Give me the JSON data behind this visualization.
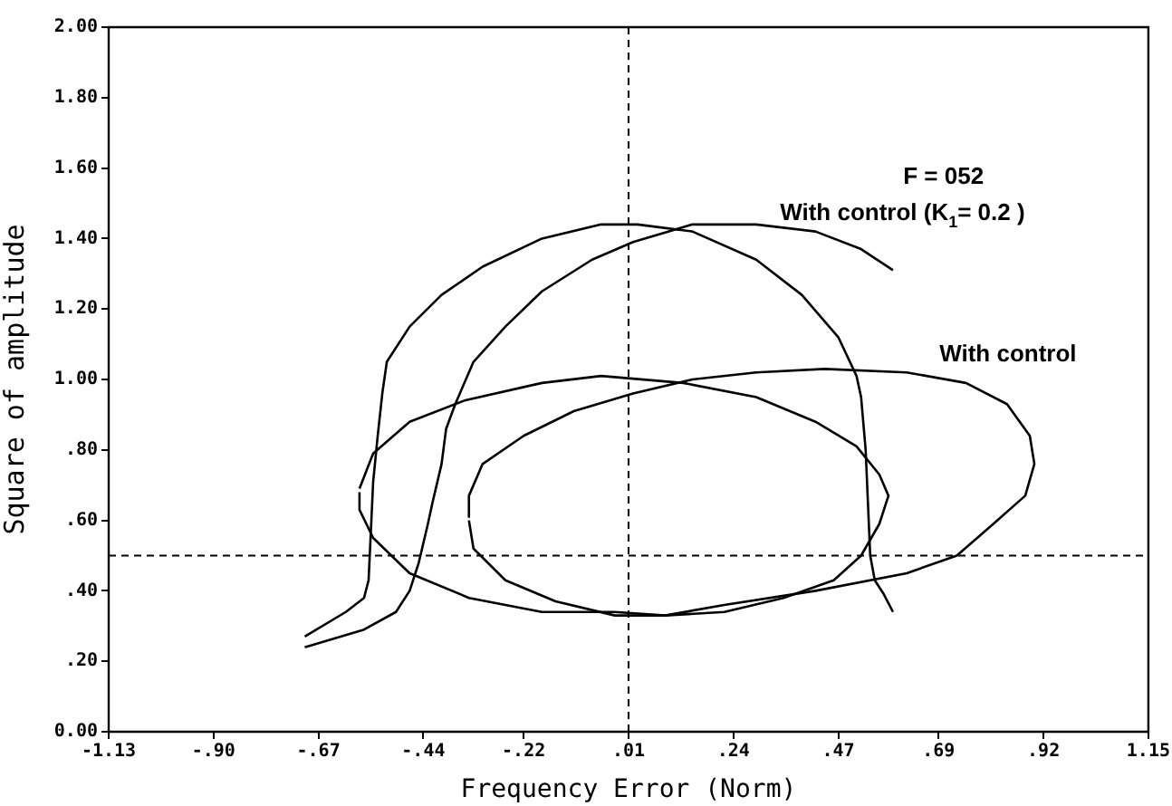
{
  "chart_data": {
    "type": "line",
    "xlabel": "Frequency Error (Norm)",
    "ylabel": "Square of amplitude",
    "xlim": [
      -1.13,
      1.15
    ],
    "xticks": [
      {
        "value": -1.13,
        "label": "-1.13"
      },
      {
        "value": -0.9,
        "label": "-.90"
      },
      {
        "value": -0.67,
        "label": "-.67"
      },
      {
        "value": -0.44,
        "label": "-.44"
      },
      {
        "value": -0.22,
        "label": "-.22"
      },
      {
        "value": 0.01,
        "label": ".01"
      },
      {
        "value": 0.24,
        "label": ".24"
      },
      {
        "value": 0.47,
        "label": ".47"
      },
      {
        "value": 0.69,
        "label": ".69"
      },
      {
        "value": 0.92,
        "label": ".92"
      },
      {
        "value": 1.15,
        "label": "1.15"
      }
    ],
    "ylim": [
      0,
      2
    ],
    "yticks": [
      {
        "value": 0,
        "label": "0.00"
      },
      {
        "value": 0.2,
        "label": ".20"
      },
      {
        "value": 0.4,
        "label": ".40"
      },
      {
        "value": 0.6,
        "label": ".60"
      },
      {
        "value": 0.8,
        "label": ".80"
      },
      {
        "value": 1,
        "label": "1.00"
      },
      {
        "value": 1.2,
        "label": "1.20"
      },
      {
        "value": 1.4,
        "label": "1.40"
      },
      {
        "value": 1.6,
        "label": "1.60"
      },
      {
        "value": 1.8,
        "label": "1.80"
      },
      {
        "value": 2,
        "label": "2.00"
      }
    ],
    "series": [
      {
        "color": "#000000",
        "x": [
          -0.7,
          -0.61,
          -0.57,
          -0.56,
          -0.55,
          -0.54,
          -0.53,
          -0.52,
          -0.47,
          -0.4,
          -0.31,
          -0.18,
          -0.05,
          0.03,
          0.15,
          0.29,
          0.39,
          0.47,
          0.51,
          0.52,
          0.53,
          0.54,
          0.55,
          0.57,
          0.59
        ],
        "values": [
          0.27,
          0.34,
          0.38,
          0.43,
          0.71,
          0.84,
          0.96,
          1.05,
          1.15,
          1.24,
          1.32,
          1.4,
          1.44,
          1.44,
          1.42,
          1.34,
          1.24,
          1.12,
          1.01,
          0.95,
          0.8,
          0.5,
          0.43,
          0.39,
          0.34
        ]
      },
      {
        "color": "#000000",
        "x": [
          -0.7,
          -0.57,
          -0.5,
          -0.47,
          -0.45,
          -0.43,
          -0.42,
          -0.4,
          -0.39,
          -0.37,
          -0.33,
          -0.26,
          -0.18,
          -0.07,
          0.02,
          0.15,
          0.29,
          0.42,
          0.52,
          0.59
        ],
        "values": [
          0.24,
          0.29,
          0.34,
          0.4,
          0.48,
          0.59,
          0.65,
          0.76,
          0.86,
          0.93,
          1.05,
          1.15,
          1.25,
          1.34,
          1.39,
          1.44,
          1.44,
          1.42,
          1.37,
          1.31
        ]
      },
      {
        "color": "#000000",
        "x": [
          -0.58,
          -0.55,
          -0.47,
          -0.35,
          -0.18,
          -0.05,
          0.13,
          0.29,
          0.42,
          0.51,
          0.56,
          0.58,
          0.56,
          0.52,
          0.46,
          0.35,
          0.22,
          0.09,
          -0.02,
          -0.18,
          -0.34,
          -0.47,
          -0.55,
          -0.58,
          -0.58
        ],
        "values": [
          0.69,
          0.79,
          0.88,
          0.94,
          0.99,
          1.01,
          0.99,
          0.95,
          0.88,
          0.81,
          0.73,
          0.67,
          0.59,
          0.5,
          0.43,
          0.38,
          0.34,
          0.33,
          0.34,
          0.34,
          0.38,
          0.45,
          0.55,
          0.63,
          0.68
        ]
      },
      {
        "color": "#000000",
        "x": [
          -0.34,
          -0.33,
          -0.26,
          -0.15,
          -0.02,
          0.09,
          0.22,
          0.42,
          0.62,
          0.73,
          0.81,
          0.88,
          0.9,
          0.89,
          0.84,
          0.75,
          0.62,
          0.44,
          0.29,
          0.15,
          0.02,
          -0.11,
          -0.22,
          -0.31,
          -0.34,
          -0.34
        ],
        "values": [
          0.6,
          0.52,
          0.43,
          0.37,
          0.33,
          0.33,
          0.36,
          0.4,
          0.45,
          0.5,
          0.59,
          0.67,
          0.76,
          0.84,
          0.93,
          0.99,
          1.02,
          1.03,
          1.02,
          1.0,
          0.96,
          0.91,
          0.84,
          0.76,
          0.67,
          0.61
        ]
      }
    ],
    "ref_lines": [
      {
        "axis": "x",
        "value": 0.01,
        "color": "#000000",
        "line_style": "dashed"
      },
      {
        "axis": "y",
        "value": 0.5,
        "color": "#000000",
        "line_style": "dashed"
      }
    ],
    "annotations": [
      "F = 052",
      "With control (K$_{1}$= 0.2 )",
      "With control"
    ],
    "grid": false,
    "legend": false,
    "marker": "none",
    "line_style": "solid"
  }
}
